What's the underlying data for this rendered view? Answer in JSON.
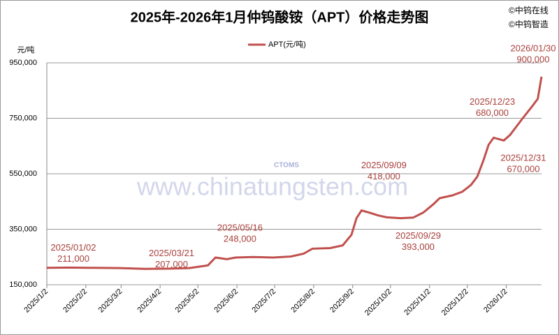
{
  "chart_data": {
    "type": "line",
    "title": "2025年-2026年1月仲钨酸铵（APT）价格走势图",
    "y_unit": "元/吨",
    "watermarks": [
      "©中钨在线",
      "©中钨智造",
      "www.chinatungsten.com",
      "CTOMS"
    ],
    "x": [
      "2025/1/2",
      "2025/1/20",
      "2025/2/10",
      "2025/3/1",
      "2025/3/21",
      "2025/4/10",
      "2025/4/25",
      "2025/5/1",
      "2025/5/10",
      "2025/5/16",
      "2025/5/25",
      "2025/6/1",
      "2025/6/15",
      "2025/7/1",
      "2025/7/15",
      "2025/7/25",
      "2025/8/1",
      "2025/8/15",
      "2025/8/25",
      "2025/9/1",
      "2025/9/5",
      "2025/9/9",
      "2025/9/15",
      "2025/9/22",
      "2025/9/29",
      "2025/10/10",
      "2025/10/20",
      "2025/10/28",
      "2025/11/5",
      "2025/11/10",
      "2025/11/20",
      "2025/11/28",
      "2025/12/5",
      "2025/12/10",
      "2025/12/15",
      "2025/12/19",
      "2025/12/23",
      "2025/12/27",
      "2025/12/31",
      "2026/1/5",
      "2026/1/10",
      "2026/1/15",
      "2026/1/22",
      "2026/1/27",
      "2026/1/30"
    ],
    "series": [
      {
        "name": "APT(元/吨)",
        "color": "#c0504d",
        "values": [
          211000,
          212000,
          211000,
          210000,
          207000,
          208000,
          210000,
          214000,
          220000,
          248000,
          242000,
          248000,
          250000,
          248000,
          252000,
          262000,
          280000,
          282000,
          292000,
          330000,
          390000,
          418000,
          410000,
          400000,
          393000,
          390000,
          392000,
          410000,
          440000,
          462000,
          472000,
          485000,
          510000,
          540000,
          600000,
          655000,
          680000,
          675000,
          670000,
          690000,
          720000,
          750000,
          790000,
          820000,
          900000
        ]
      }
    ],
    "annotations": [
      {
        "date": "2025/01/02",
        "value": 211000,
        "label": "211,000"
      },
      {
        "date": "2025/03/21",
        "value": 207000,
        "label": "207,000"
      },
      {
        "date": "2025/05/16",
        "value": 248000,
        "label": "248,000"
      },
      {
        "date": "2025/09/09",
        "value": 418000,
        "label": "418,000"
      },
      {
        "date": "2025/09/29",
        "value": 393000,
        "label": "393,000"
      },
      {
        "date": "2025/12/23",
        "value": 680000,
        "label": "680,000"
      },
      {
        "date": "2025/12/31",
        "value": 670000,
        "label": "670,000"
      },
      {
        "date": "2026/01/30",
        "value": 900000,
        "label": "900,000"
      }
    ],
    "xlim": [
      "2025/1/2",
      "2026/1/30"
    ],
    "xticks": [
      "2025/1/2",
      "2025/2/2",
      "2025/3/2",
      "2025/4/2",
      "2025/5/2",
      "2025/6/2",
      "2025/7/2",
      "2025/8/2",
      "2025/9/2",
      "2025/10/2",
      "2025/11/2",
      "2025/12/2",
      "2026/1/2"
    ],
    "ylim": [
      150000,
      950000
    ],
    "yticks": [
      {
        "value": 150000,
        "label": "150,000"
      },
      {
        "value": 350000,
        "label": "350,000"
      },
      {
        "value": 550000,
        "label": "550,000"
      },
      {
        "value": 750000,
        "label": "750,000"
      },
      {
        "value": 950000,
        "label": "950,000"
      }
    ],
    "grid": true
  }
}
